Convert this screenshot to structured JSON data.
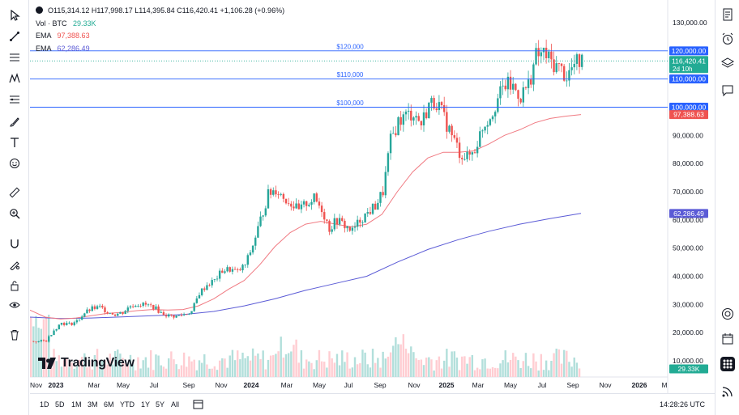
{
  "legend": {
    "symbol_row": "O115,314.12  H117,998.17  L114,395.84  C116,420.41  +1,106.28 (+0.96%)",
    "vol_label": "Vol · BTC",
    "vol_value": "29.33K",
    "ema1_label": "EMA",
    "ema1_value": "97,388.63",
    "ema2_label": "EMA",
    "ema2_value": "62,286.49"
  },
  "colors": {
    "up": "#26a69a",
    "down": "#ef5350",
    "ema_fast": "#f07a82",
    "ema_slow": "#5b5bd6",
    "hline": "#2962ff",
    "price_line": "#22ab94",
    "vol_up": "#b2dfdb",
    "vol_down": "#ffcdd2"
  },
  "timeframes": [
    "1D",
    "5D",
    "1M",
    "3M",
    "6M",
    "YTD",
    "1Y",
    "5Y",
    "All"
  ],
  "clock": "14:28:26 UTC",
  "logo_text": "TradingView",
  "chart_data": {
    "type": "candlestick",
    "title": "BTC",
    "y_axis_ticks": [
      "130,000.00",
      "120,000.00",
      "110,000.00",
      "100,000.00",
      "90,000.00",
      "80,000.00",
      "70,000.00",
      "60,000.00",
      "50,000.00",
      "40,000.00",
      "30,000.00",
      "20,000.00",
      "10,000.00"
    ],
    "y_tick_values": [
      130000,
      120000,
      110000,
      100000,
      90000,
      80000,
      70000,
      60000,
      50000,
      40000,
      30000,
      20000,
      10000
    ],
    "x_axis_ticks": [
      "Nov",
      "2023",
      "Mar",
      "May",
      "Jul",
      "Sep",
      "Nov",
      "2024",
      "Mar",
      "May",
      "Jul",
      "Sep",
      "Nov",
      "2025",
      "Mar",
      "May",
      "Jul",
      "Sep",
      "Nov",
      "2026",
      "M"
    ],
    "horizontal_lines": [
      {
        "label": "$120,000",
        "value": 120000
      },
      {
        "label": "$110,000",
        "value": 110000
      },
      {
        "label": "$100,000",
        "value": 100000
      }
    ],
    "price_labels": {
      "level_120": "120,000.00",
      "last_price": "116,420.41",
      "countdown": "2d 10h",
      "level_110": "110,000.00",
      "level_100": "100,000.00",
      "ema_fast": "97,388.63",
      "ema_slow": "62,286.49",
      "volume": "29.33K"
    },
    "last_price": 116420.41,
    "ema_fast_last": 97388.63,
    "ema_slow_last": 62286.49,
    "price_trend": [
      [
        0,
        17000
      ],
      [
        3,
        16800
      ],
      [
        6,
        17200
      ],
      [
        9,
        21000
      ],
      [
        12,
        23500
      ],
      [
        15,
        23000
      ],
      [
        18,
        24000
      ],
      [
        21,
        27000
      ],
      [
        24,
        28500
      ],
      [
        27,
        29000
      ],
      [
        30,
        27500
      ],
      [
        33,
        26500
      ],
      [
        36,
        27200
      ],
      [
        39,
        29500
      ],
      [
        42,
        30200
      ],
      [
        45,
        29800
      ],
      [
        48,
        29200
      ],
      [
        51,
        27000
      ],
      [
        54,
        26000
      ],
      [
        57,
        25800
      ],
      [
        60,
        26500
      ],
      [
        63,
        27500
      ],
      [
        66,
        34000
      ],
      [
        69,
        37000
      ],
      [
        72,
        38500
      ],
      [
        75,
        42000
      ],
      [
        78,
        42500
      ],
      [
        81,
        41500
      ],
      [
        84,
        44000
      ],
      [
        87,
        51000
      ],
      [
        90,
        60000
      ],
      [
        93,
        69000
      ],
      [
        96,
        71000
      ],
      [
        99,
        68000
      ],
      [
        102,
        66000
      ],
      [
        105,
        63000
      ],
      [
        108,
        66000
      ],
      [
        111,
        67500
      ],
      [
        114,
        64000
      ],
      [
        117,
        57000
      ],
      [
        120,
        60000
      ],
      [
        123,
        58000
      ],
      [
        126,
        56000
      ],
      [
        129,
        60000
      ],
      [
        132,
        62500
      ],
      [
        135,
        65000
      ],
      [
        138,
        70000
      ],
      [
        141,
        88000
      ],
      [
        144,
        95000
      ],
      [
        147,
        97000
      ],
      [
        150,
        98000
      ],
      [
        153,
        94000
      ],
      [
        156,
        101000
      ],
      [
        159,
        102000
      ],
      [
        162,
        96000
      ],
      [
        165,
        90000
      ],
      [
        168,
        84000
      ],
      [
        171,
        82000
      ],
      [
        174,
        85000
      ],
      [
        177,
        93000
      ],
      [
        180,
        97000
      ],
      [
        183,
        103000
      ],
      [
        186,
        108000
      ],
      [
        189,
        107000
      ],
      [
        192,
        104000
      ],
      [
        195,
        108000
      ],
      [
        198,
        118000
      ],
      [
        201,
        119000
      ],
      [
        204,
        116000
      ],
      [
        207,
        114000
      ],
      [
        210,
        111000
      ],
      [
        213,
        115000
      ],
      [
        216,
        116400
      ]
    ],
    "ema_fast_trend": [
      [
        0,
        28000
      ],
      [
        6,
        25500
      ],
      [
        12,
        24800
      ],
      [
        18,
        25200
      ],
      [
        24,
        26000
      ],
      [
        30,
        26800
      ],
      [
        36,
        27200
      ],
      [
        42,
        27800
      ],
      [
        48,
        28200
      ],
      [
        54,
        28000
      ],
      [
        60,
        28200
      ],
      [
        66,
        29500
      ],
      [
        72,
        32000
      ],
      [
        78,
        35500
      ],
      [
        84,
        38500
      ],
      [
        90,
        44000
      ],
      [
        96,
        50500
      ],
      [
        102,
        55500
      ],
      [
        108,
        58500
      ],
      [
        114,
        59500
      ],
      [
        120,
        58500
      ],
      [
        126,
        57500
      ],
      [
        132,
        58500
      ],
      [
        138,
        62000
      ],
      [
        144,
        70000
      ],
      [
        150,
        77000
      ],
      [
        156,
        82000
      ],
      [
        162,
        84000
      ],
      [
        168,
        84000
      ],
      [
        174,
        84500
      ],
      [
        180,
        87000
      ],
      [
        186,
        90000
      ],
      [
        192,
        92000
      ],
      [
        198,
        94500
      ],
      [
        204,
        96000
      ],
      [
        210,
        96800
      ],
      [
        216,
        97400
      ]
    ],
    "ema_slow_trend": [
      [
        0,
        25500
      ],
      [
        12,
        25000
      ],
      [
        24,
        25200
      ],
      [
        36,
        25600
      ],
      [
        48,
        26000
      ],
      [
        60,
        26400
      ],
      [
        72,
        27500
      ],
      [
        84,
        29500
      ],
      [
        96,
        32000
      ],
      [
        108,
        35000
      ],
      [
        120,
        37500
      ],
      [
        132,
        40000
      ],
      [
        144,
        45000
      ],
      [
        156,
        49500
      ],
      [
        168,
        53000
      ],
      [
        180,
        56000
      ],
      [
        192,
        58500
      ],
      [
        204,
        60500
      ],
      [
        216,
        62300
      ]
    ],
    "volume_note": "volume histogram bars along the bottom of the plot"
  }
}
